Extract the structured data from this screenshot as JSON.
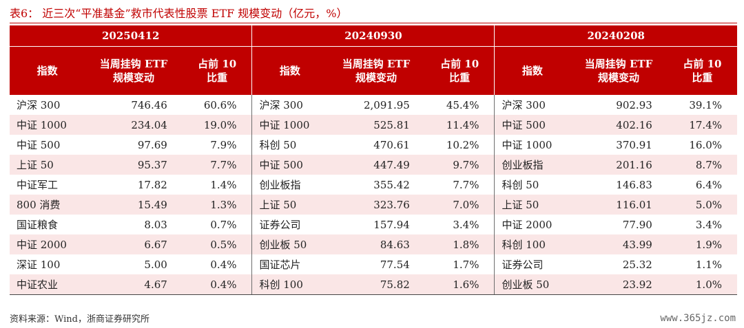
{
  "title": "表6：  近三次“平准基金”救市代表性股票 ETF 规模变动（亿元，%）",
  "groups": [
    "20250412",
    "20240930",
    "20240208"
  ],
  "headers": {
    "index": "指数",
    "change_line1": "当周挂钩 ETF",
    "change_line2": "规模变动",
    "share_line1": "占前 10",
    "share_line2": "比重"
  },
  "rows": [
    [
      [
        "沪深 300",
        "746.46",
        "60.6%"
      ],
      [
        "沪深 300",
        "2,091.95",
        "45.4%"
      ],
      [
        "沪深 300",
        "902.93",
        "39.1%"
      ]
    ],
    [
      [
        "中证 1000",
        "234.04",
        "19.0%"
      ],
      [
        "中证 1000",
        "525.81",
        "11.4%"
      ],
      [
        "中证 500",
        "402.16",
        "17.4%"
      ]
    ],
    [
      [
        "中证 500",
        "97.69",
        "7.9%"
      ],
      [
        "科创 50",
        "470.61",
        "10.2%"
      ],
      [
        "中证 1000",
        "370.91",
        "16.0%"
      ]
    ],
    [
      [
        "上证 50",
        "95.37",
        "7.7%"
      ],
      [
        "中证 500",
        "447.49",
        "9.7%"
      ],
      [
        "创业板指",
        "201.16",
        "8.7%"
      ]
    ],
    [
      [
        "中证军工",
        "17.82",
        "1.4%"
      ],
      [
        "创业板指",
        "355.42",
        "7.7%"
      ],
      [
        "科创 50",
        "146.83",
        "6.4%"
      ]
    ],
    [
      [
        "800 消费",
        "15.49",
        "1.3%"
      ],
      [
        "上证 50",
        "323.76",
        "7.0%"
      ],
      [
        "上证 50",
        "116.01",
        "5.0%"
      ]
    ],
    [
      [
        "国证粮食",
        "8.03",
        "0.7%"
      ],
      [
        "证券公司",
        "157.94",
        "3.4%"
      ],
      [
        "中证 2000",
        "77.90",
        "3.4%"
      ]
    ],
    [
      [
        "中证 2000",
        "6.67",
        "0.5%"
      ],
      [
        "创业板 50",
        "84.63",
        "1.8%"
      ],
      [
        "科创 100",
        "43.99",
        "1.9%"
      ]
    ],
    [
      [
        "深证 100",
        "5.00",
        "0.4%"
      ],
      [
        "国证芯片",
        "77.54",
        "1.7%"
      ],
      [
        "证券公司",
        "25.32",
        "1.1%"
      ]
    ],
    [
      [
        "中证农业",
        "4.67",
        "0.4%"
      ],
      [
        "科创 100",
        "75.82",
        "1.6%"
      ],
      [
        "创业板 50",
        "23.92",
        "1.0%"
      ]
    ]
  ],
  "source": "资料来源：Wind，浙商证券研究所",
  "watermark": "www.365jz.com",
  "colors": {
    "header_bg": "#c00000",
    "stripe_bg": "#fae6e6",
    "title": "#c00000"
  }
}
